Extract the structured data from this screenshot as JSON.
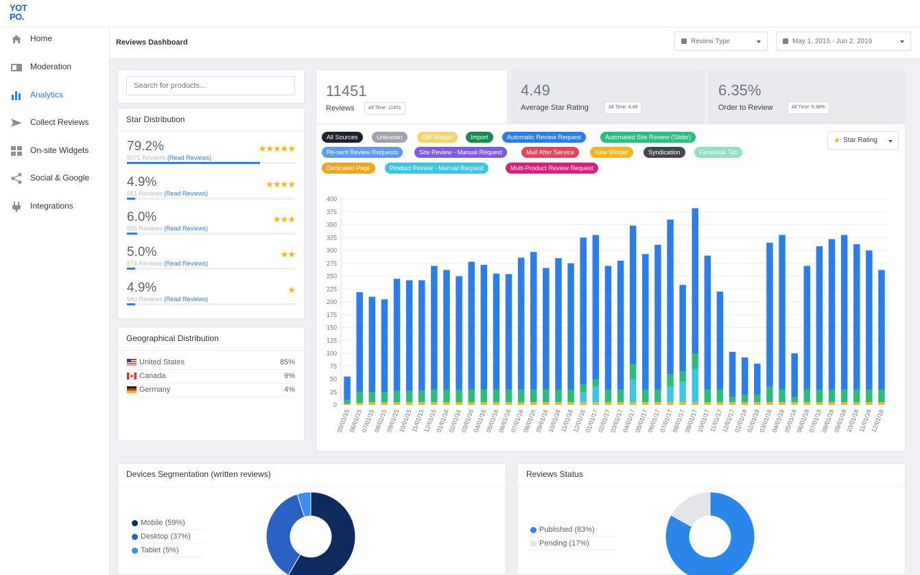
{
  "app": {
    "logo": "YOT PO."
  },
  "sidebar": {
    "items": [
      {
        "label": "Home",
        "icon": "home-icon",
        "active": false
      },
      {
        "label": "Moderation",
        "icon": "moderation-icon",
        "active": false
      },
      {
        "label": "Analytics",
        "icon": "analytics-icon",
        "active": true
      },
      {
        "label": "Collect Reviews",
        "icon": "send-icon",
        "active": false
      },
      {
        "label": "On-site Widgets",
        "icon": "widgets-icon",
        "active": false
      },
      {
        "label": "Social & Google",
        "icon": "share-icon",
        "active": false
      },
      {
        "label": "Integrations",
        "icon": "plug-icon",
        "active": false
      }
    ]
  },
  "header": {
    "title": "Reviews Dashboard",
    "review_type": "Review Type",
    "date_range": "May 1, 2015 - Jun 2, 2019"
  },
  "search": {
    "placeholder": "Search for products..."
  },
  "star_distribution": {
    "title": "Star Distribution",
    "rows": [
      {
        "pct": "79.2%",
        "count": "9071 Reviews",
        "link": "(Read Reviews)",
        "stars": "★★★★★",
        "fraction": 0.792
      },
      {
        "pct": "4.9%",
        "count": "561 Reviews",
        "link": "(Read Reviews)",
        "stars": "★★★★",
        "fraction": 0.049
      },
      {
        "pct": "6.0%",
        "count": "685 Reviews",
        "link": "(Read Reviews)",
        "stars": "★★★",
        "fraction": 0.06
      },
      {
        "pct": "5.0%",
        "count": "574 Reviews",
        "link": "(Read Reviews)",
        "stars": "★★",
        "fraction": 0.05
      },
      {
        "pct": "4.9%",
        "count": "560 Reviews",
        "link": "(Read Reviews)",
        "stars": "★",
        "fraction": 0.049
      }
    ]
  },
  "geo": {
    "title": "Geographical Distribution",
    "rows": [
      {
        "country": "United States",
        "value": "85%",
        "flag": "us-flag-icon"
      },
      {
        "country": "Canada",
        "value": "9%",
        "flag": "ca-flag-icon"
      },
      {
        "country": "Germany",
        "value": "4%",
        "flag": "de-flag-icon"
      }
    ]
  },
  "kpis": [
    {
      "value": "11451",
      "label": "Reviews",
      "badge": "All Time: 11451"
    },
    {
      "value": "4.49",
      "label": "Average Star Rating",
      "badge": "All Time: 4.49"
    },
    {
      "value": "6.35%",
      "label": "Order to Review",
      "badge": "All Time: 6.38%"
    }
  ],
  "sources": [
    {
      "label": "All Sources",
      "color": "#1d2230"
    },
    {
      "label": "Unknown",
      "color": "#9ea3ad"
    },
    {
      "label": "Old Widget",
      "color": "#f5d372"
    },
    {
      "label": "Import",
      "color": "#178a52"
    },
    {
      "label": "Automatic Review Request",
      "color": "#2b7de9"
    },
    {
      "label": "Automated Site Review (Slider)",
      "color": "#2bbd7e"
    },
    {
      "label": "Re-sent Review Requests",
      "color": "#5b9bf2"
    },
    {
      "label": "Site Review - Manual Request",
      "color": "#7b5be0"
    },
    {
      "label": "Mail After Service",
      "color": "#e8435a"
    },
    {
      "label": "New Widget",
      "color": "#f3b41d"
    },
    {
      "label": "Syndication",
      "color": "#42474f"
    },
    {
      "label": "Facebook Tab",
      "color": "#8fe0c4"
    },
    {
      "label": "Dedicated Page",
      "color": "#f5a31d"
    },
    {
      "label": "Product Review - Manual Request",
      "color": "#3cc5e8"
    },
    {
      "label": "Multi-Product Review Request",
      "color": "#e01b7c"
    }
  ],
  "rating_filter": {
    "label": "Star Rating",
    "icon": "star-icon"
  },
  "chart_data": {
    "type": "bar",
    "stacked": true,
    "categories": [
      "05/01/15",
      "06/01/15",
      "07/01/15",
      "08/01/15",
      "09/01/15",
      "10/01/15",
      "11/01/15",
      "12/01/15",
      "01/01/16",
      "02/01/16",
      "03/01/16",
      "04/01/16",
      "05/01/16",
      "06/01/16",
      "07/01/16",
      "08/01/16",
      "09/01/16",
      "10/01/16",
      "11/01/16",
      "12/01/16",
      "01/01/17",
      "02/01/17",
      "03/01/17",
      "04/01/17",
      "05/01/17",
      "06/01/17",
      "07/01/17",
      "08/01/17",
      "09/01/17",
      "10/01/17",
      "11/01/17",
      "12/01/17",
      "01/01/18",
      "02/01/18",
      "03/01/18",
      "04/01/18",
      "05/01/18",
      "06/01/18",
      "07/01/18",
      "08/01/18",
      "09/01/18",
      "10/01/18",
      "11/01/18",
      "12/01/18"
    ],
    "series": [
      {
        "name": "Old Widget",
        "color": "#f3b41d",
        "values": [
          2,
          4,
          5,
          5,
          5,
          5,
          5,
          5,
          5,
          5,
          5,
          5,
          5,
          5,
          5,
          5,
          5,
          5,
          5,
          5,
          5,
          5,
          5,
          5,
          5,
          5,
          5,
          5,
          5,
          5,
          5,
          5,
          5,
          5,
          5,
          5,
          5,
          5,
          5,
          5,
          5,
          5,
          5,
          5
        ]
      },
      {
        "name": "Product Review - Manual Request",
        "color": "#3cc5e8",
        "values": [
          0,
          0,
          0,
          0,
          0,
          0,
          0,
          0,
          0,
          0,
          0,
          0,
          0,
          0,
          0,
          0,
          0,
          0,
          0,
          20,
          30,
          0,
          0,
          45,
          0,
          0,
          30,
          40,
          65,
          0,
          0,
          0,
          0,
          0,
          0,
          0,
          0,
          0,
          0,
          0,
          0,
          0,
          0,
          0
        ]
      },
      {
        "name": "Automated Site Review (Slider)",
        "color": "#2bbd7e",
        "values": [
          8,
          22,
          20,
          20,
          22,
          22,
          22,
          25,
          25,
          25,
          25,
          25,
          25,
          25,
          25,
          25,
          25,
          25,
          25,
          15,
          15,
          25,
          25,
          30,
          25,
          25,
          25,
          20,
          30,
          25,
          25,
          10,
          15,
          15,
          30,
          25,
          10,
          25,
          25,
          25,
          25,
          25,
          25,
          25
        ]
      },
      {
        "name": "Automatic Review Request",
        "color": "#2b7de9",
        "values": [
          45,
          193,
          185,
          180,
          218,
          215,
          215,
          240,
          232,
          220,
          248,
          242,
          225,
          224,
          256,
          267,
          236,
          255,
          245,
          285,
          280,
          240,
          250,
          268,
          263,
          281,
          300,
          168,
          282,
          260,
          190,
          88,
          72,
          60,
          280,
          300,
          85,
          240,
          278,
          292,
          300,
          282,
          270,
          232
        ]
      }
    ],
    "ylim": [
      0,
      400
    ],
    "yticks": [
      0,
      25,
      50,
      75,
      100,
      125,
      150,
      175,
      200,
      225,
      250,
      275,
      300,
      325,
      350,
      375,
      400
    ],
    "grid": true
  },
  "devices": {
    "title": "Devices Segmentation (written reviews)",
    "items": [
      {
        "label": "Mobile (59%)",
        "value": 59,
        "color": "#0d2b5c"
      },
      {
        "label": "Desktop (37%)",
        "value": 37,
        "color": "#2a62c4"
      },
      {
        "label": "Tablet (5%)",
        "value": 5,
        "color": "#3a8ef0"
      }
    ]
  },
  "status": {
    "title": "Reviews Status",
    "items": [
      {
        "label": "Published (83%)",
        "value": 83,
        "color": "#2b86ea"
      },
      {
        "label": "Pending (17%)",
        "value": 17,
        "color": "#e3e5e8"
      }
    ]
  }
}
